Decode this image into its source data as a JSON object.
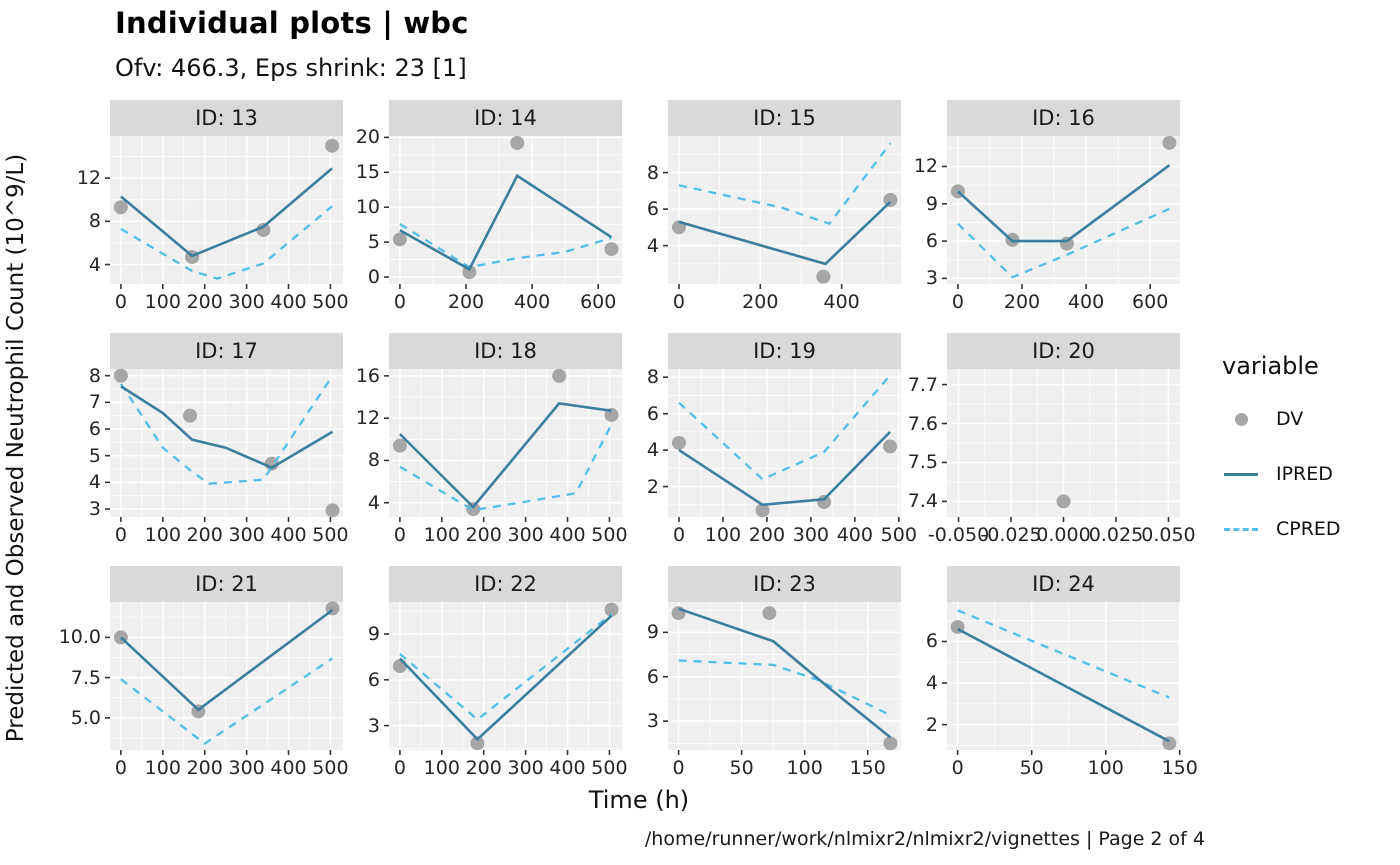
{
  "header": {
    "title": "Individual plots | wbc",
    "subtitle": "Ofv: 466.3, Eps shrink: 23 [1]"
  },
  "axes": {
    "x_label": "Time (h)",
    "y_label": "Predicted and Observed Neutrophil Count (10^9/L)"
  },
  "caption": "/home/runner/work/nlmixr2/nlmixr2/vignettes | Page 2 of 4",
  "legend": {
    "title": "variable",
    "entries": [
      {
        "label": "DV",
        "key": "point"
      },
      {
        "label": "IPRED",
        "key": "solid-line"
      },
      {
        "label": "CPRED",
        "key": "dashed-line"
      }
    ]
  },
  "colors": {
    "dv": "#a6a6a6",
    "ipred": "#3d7e9d",
    "cpred": "#54bde8",
    "panel_bg": "#efefef",
    "strip_bg": "#d9d9d9",
    "grid": "#ffffff",
    "tick": "#333333"
  },
  "chart_data": {
    "type": "line",
    "facet_by": "ID",
    "facets": [
      {
        "label": "ID: 13",
        "x_domain": [
          -26,
          530
        ],
        "y_domain": [
          2.2,
          15.9
        ],
        "x_ticks": [
          0,
          100,
          200,
          300,
          400,
          500
        ],
        "x_tick_labels": [
          "0",
          "100",
          "200",
          "300",
          "400",
          "500"
        ],
        "y_ticks": [
          4,
          8,
          12
        ],
        "y_tick_labels": [
          "4",
          "8",
          "12"
        ],
        "series": {
          "dv": [
            [
              0,
              9.3
            ],
            [
              170,
              4.7
            ],
            [
              340,
              7.2
            ],
            [
              504,
              15.0
            ]
          ],
          "ipred": [
            [
              0,
              10.3
            ],
            [
              170,
              4.8
            ],
            [
              340,
              7.5
            ],
            [
              504,
              12.9
            ]
          ],
          "cpred": [
            [
              0,
              7.3
            ],
            [
              170,
              3.4
            ],
            [
              230,
              2.7
            ],
            [
              340,
              4.1
            ],
            [
              504,
              9.4
            ]
          ]
        }
      },
      {
        "label": "ID: 14",
        "x_domain": [
          -33,
          672
        ],
        "y_domain": [
          -1.0,
          20.2
        ],
        "x_ticks": [
          0,
          200,
          400,
          600
        ],
        "x_tick_labels": [
          "0",
          "200",
          "400",
          "600"
        ],
        "y_ticks": [
          0,
          5,
          10,
          15,
          20
        ],
        "y_tick_labels": [
          "0",
          "5",
          "10",
          "15",
          "20"
        ],
        "series": {
          "dv": [
            [
              0,
              5.4
            ],
            [
              210,
              0.7
            ],
            [
              355,
              19.2
            ],
            [
              640,
              4.0
            ]
          ],
          "ipred": [
            [
              0,
              6.7
            ],
            [
              210,
              1.1
            ],
            [
              355,
              14.5
            ],
            [
              640,
              5.7
            ]
          ],
          "cpred": [
            [
              0,
              7.6
            ],
            [
              210,
              1.4
            ],
            [
              355,
              2.7
            ],
            [
              500,
              3.6
            ],
            [
              640,
              5.6
            ]
          ]
        }
      },
      {
        "label": "ID: 15",
        "x_domain": [
          -27,
          546
        ],
        "y_domain": [
          1.9,
          10.0
        ],
        "x_ticks": [
          0,
          200,
          400
        ],
        "x_tick_labels": [
          "0",
          "200",
          "400"
        ],
        "y_ticks": [
          4,
          6,
          8
        ],
        "y_tick_labels": [
          "4",
          "6",
          "8"
        ],
        "series": {
          "dv": [
            [
              0,
              5.0
            ],
            [
              355,
              2.3
            ],
            [
              520,
              6.5
            ]
          ],
          "ipred": [
            [
              0,
              5.3
            ],
            [
              360,
              3.0
            ],
            [
              520,
              6.4
            ]
          ],
          "cpred": [
            [
              0,
              7.3
            ],
            [
              250,
              6.1
            ],
            [
              370,
              5.2
            ],
            [
              520,
              9.6
            ]
          ]
        }
      },
      {
        "label": "ID: 16",
        "x_domain": [
          -34,
          693
        ],
        "y_domain": [
          2.55,
          14.45
        ],
        "x_ticks": [
          0,
          200,
          400,
          600
        ],
        "x_tick_labels": [
          "0",
          "200",
          "400",
          "600"
        ],
        "y_ticks": [
          3,
          6,
          9,
          12
        ],
        "y_tick_labels": [
          "3",
          "6",
          "9",
          "12"
        ],
        "series": {
          "dv": [
            [
              0,
              10.0
            ],
            [
              170,
              6.1
            ],
            [
              340,
              5.8
            ],
            [
              660,
              13.9
            ]
          ],
          "ipred": [
            [
              0,
              10.0
            ],
            [
              170,
              6.0
            ],
            [
              340,
              6.0
            ],
            [
              660,
              12.1
            ]
          ],
          "cpred": [
            [
              0,
              7.4
            ],
            [
              170,
              3.1
            ],
            [
              340,
              4.9
            ],
            [
              660,
              8.6
            ]
          ]
        }
      },
      {
        "label": "ID: 17",
        "x_domain": [
          -26,
          530
        ],
        "y_domain": [
          2.7,
          8.25
        ],
        "x_ticks": [
          0,
          100,
          200,
          300,
          400,
          500
        ],
        "x_tick_labels": [
          "0",
          "100",
          "200",
          "300",
          "400",
          "500"
        ],
        "y_ticks": [
          3,
          4,
          5,
          6,
          7,
          8
        ],
        "y_tick_labels": [
          "3",
          "4",
          "5",
          "6",
          "7",
          "8"
        ],
        "series": {
          "dv": [
            [
              0,
              8.0
            ],
            [
              165,
              6.5
            ],
            [
              360,
              4.7
            ],
            [
              505,
              2.95
            ]
          ],
          "ipred": [
            [
              0,
              7.6
            ],
            [
              100,
              6.6
            ],
            [
              170,
              5.6
            ],
            [
              250,
              5.3
            ],
            [
              360,
              4.55
            ],
            [
              505,
              5.9
            ]
          ],
          "cpred": [
            [
              0,
              7.7
            ],
            [
              100,
              5.3
            ],
            [
              170,
              4.4
            ],
            [
              210,
              3.95
            ],
            [
              340,
              4.1
            ],
            [
              505,
              8.0
            ]
          ]
        }
      },
      {
        "label": "ID: 18",
        "x_domain": [
          -26,
          530
        ],
        "y_domain": [
          2.65,
          16.65
        ],
        "x_ticks": [
          0,
          100,
          200,
          300,
          400,
          500
        ],
        "x_tick_labels": [
          "0",
          "100",
          "200",
          "300",
          "400",
          "500"
        ],
        "y_ticks": [
          4,
          8,
          12,
          16
        ],
        "y_tick_labels": [
          "4",
          "8",
          "12",
          "16"
        ],
        "series": {
          "dv": [
            [
              0,
              9.4
            ],
            [
              175,
              3.4
            ],
            [
              380,
              16.0
            ],
            [
              505,
              12.3
            ]
          ],
          "ipred": [
            [
              0,
              10.5
            ],
            [
              175,
              3.6
            ],
            [
              380,
              13.4
            ],
            [
              505,
              12.7
            ]
          ],
          "cpred": [
            [
              0,
              7.4
            ],
            [
              175,
              3.3
            ],
            [
              300,
              4.1
            ],
            [
              420,
              4.9
            ],
            [
              505,
              11.4
            ]
          ]
        }
      },
      {
        "label": "ID: 19",
        "x_domain": [
          -25,
          505
        ],
        "y_domain": [
          0.33,
          8.45
        ],
        "x_ticks": [
          0,
          100,
          200,
          300,
          400,
          500
        ],
        "x_tick_labels": [
          "0",
          "100",
          "200",
          "300",
          "400",
          "500"
        ],
        "y_ticks": [
          2,
          4,
          6,
          8
        ],
        "y_tick_labels": [
          "2",
          "4",
          "6",
          "8"
        ],
        "series": {
          "dv": [
            [
              0,
              4.4
            ],
            [
              190,
              0.7
            ],
            [
              330,
              1.15
            ],
            [
              480,
              4.2
            ]
          ],
          "ipred": [
            [
              0,
              4.0
            ],
            [
              190,
              1.0
            ],
            [
              330,
              1.3
            ],
            [
              480,
              5.0
            ]
          ],
          "cpred": [
            [
              0,
              6.6
            ],
            [
              190,
              2.4
            ],
            [
              330,
              3.9
            ],
            [
              480,
              8.1
            ]
          ]
        }
      },
      {
        "label": "ID: 20",
        "x_domain": [
          -0.0555,
          0.0555
        ],
        "y_domain": [
          7.36,
          7.74
        ],
        "x_ticks": [
          -0.05,
          -0.025,
          0.0,
          0.025,
          0.05
        ],
        "x_tick_labels": [
          "-0.050",
          "-0.025",
          "0.000",
          "0.025",
          "0.050"
        ],
        "y_ticks": [
          7.4,
          7.5,
          7.6,
          7.7
        ],
        "y_tick_labels": [
          "7.4",
          "7.5",
          "7.6",
          "7.7"
        ],
        "series": {
          "dv": [
            [
              0,
              7.4
            ]
          ],
          "ipred": [],
          "cpred": []
        }
      },
      {
        "label": "ID: 21",
        "x_domain": [
          -26,
          530
        ],
        "y_domain": [
          3.0,
          12.2
        ],
        "x_ticks": [
          0,
          100,
          200,
          300,
          400,
          500
        ],
        "x_tick_labels": [
          "0",
          "100",
          "200",
          "300",
          "400",
          "500"
        ],
        "y_ticks": [
          5.0,
          7.5,
          10.0
        ],
        "y_tick_labels": [
          "5.0",
          "7.5",
          "10.0"
        ],
        "series": {
          "dv": [
            [
              0,
              10.0
            ],
            [
              185,
              5.4
            ],
            [
              505,
              11.8
            ]
          ],
          "ipred": [
            [
              0,
              10.0
            ],
            [
              185,
              5.5
            ],
            [
              505,
              11.7
            ]
          ],
          "cpred": [
            [
              0,
              7.4
            ],
            [
              200,
              3.4
            ],
            [
              505,
              8.7
            ]
          ]
        }
      },
      {
        "label": "ID: 22",
        "x_domain": [
          -26,
          530
        ],
        "y_domain": [
          1.4,
          11.1
        ],
        "x_ticks": [
          0,
          100,
          200,
          300,
          400,
          500
        ],
        "x_tick_labels": [
          "0",
          "100",
          "200",
          "300",
          "400",
          "500"
        ],
        "y_ticks": [
          3,
          6,
          9
        ],
        "y_tick_labels": [
          "3",
          "6",
          "9"
        ],
        "series": {
          "dv": [
            [
              0,
              6.9
            ],
            [
              185,
              1.85
            ],
            [
              505,
              10.6
            ]
          ],
          "ipred": [
            [
              0,
              7.4
            ],
            [
              185,
              2.1
            ],
            [
              505,
              10.2
            ]
          ],
          "cpred": [
            [
              0,
              7.7
            ],
            [
              185,
              3.4
            ],
            [
              505,
              10.3
            ]
          ]
        }
      },
      {
        "label": "ID: 23",
        "x_domain": [
          -8.4,
          176.4
        ],
        "y_domain": [
          1.05,
          11.05
        ],
        "x_ticks": [
          0,
          50,
          100,
          150
        ],
        "x_tick_labels": [
          "0",
          "50",
          "100",
          "150"
        ],
        "y_ticks": [
          3,
          6,
          9
        ],
        "y_tick_labels": [
          "3",
          "6",
          "9"
        ],
        "series": {
          "dv": [
            [
              0,
              10.3
            ],
            [
              72,
              10.3
            ],
            [
              168,
              1.5
            ]
          ],
          "ipred": [
            [
              0,
              10.6
            ],
            [
              75,
              8.4
            ],
            [
              120,
              5.2
            ],
            [
              168,
              1.9
            ]
          ],
          "cpred": [
            [
              0,
              7.1
            ],
            [
              75,
              6.8
            ],
            [
              110,
              5.8
            ],
            [
              168,
              3.4
            ]
          ]
        }
      },
      {
        "label": "ID: 24",
        "x_domain": [
          -7.2,
          150.2
        ],
        "y_domain": [
          0.78,
          7.9
        ],
        "x_ticks": [
          0,
          50,
          100,
          150
        ],
        "x_tick_labels": [
          "0",
          "50",
          "100",
          "150"
        ],
        "y_ticks": [
          2,
          4,
          6
        ],
        "y_tick_labels": [
          "2",
          "4",
          "6"
        ],
        "series": {
          "dv": [
            [
              0,
              6.7
            ],
            [
              143,
              1.1
            ]
          ],
          "ipred": [
            [
              0,
              6.6
            ],
            [
              143,
              1.2
            ]
          ],
          "cpred": [
            [
              0,
              7.5
            ],
            [
              143,
              3.3
            ]
          ]
        }
      }
    ]
  }
}
